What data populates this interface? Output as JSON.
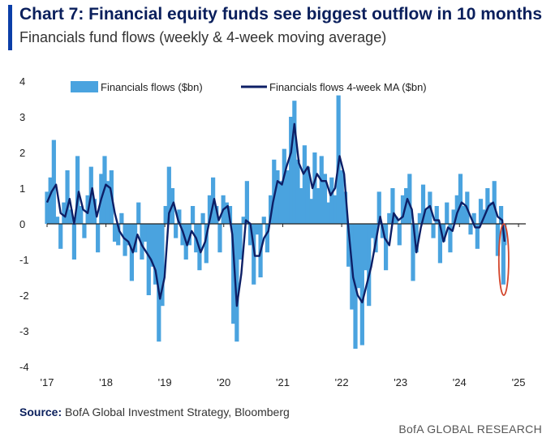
{
  "header": {
    "title": "Chart 7: Financial equity funds see biggest outflow in 10 months",
    "subtitle": "Financials fund flows (weekly & 4-week moving average)"
  },
  "footer": {
    "source_label": "Source:",
    "source_text": "BofA Global Investment Strategy, Bloomberg",
    "brand": "BofA GLOBAL RESEARCH"
  },
  "colors": {
    "weekly": "#4aa3df",
    "ma": "#0d1f66",
    "highlight": "#d2452b",
    "axis": "#222222",
    "accent": "#0b3ea8"
  },
  "chart_data": {
    "type": "bar",
    "x_type": "date",
    "x_range": [
      "2017-01-01",
      "2025-02-15"
    ],
    "ylim": [
      -4,
      4
    ],
    "y_ticks": [
      4,
      3,
      2,
      1,
      0,
      -1,
      -2,
      -3,
      -4
    ],
    "x_tick_labels": [
      "'17",
      "'18",
      "'19",
      "'20",
      "'21",
      "'22",
      "'23",
      "'24",
      "'25"
    ],
    "x_tick_dates": [
      "2017-01-01",
      "2018-01-01",
      "2019-01-01",
      "2020-01-01",
      "2021-01-01",
      "2022-01-01",
      "2023-01-01",
      "2024-01-01",
      "2025-01-01"
    ],
    "legend_position": "top",
    "annotation": {
      "type": "ellipse-highlight",
      "x_range": [
        "2024-09-01",
        "2024-11-01"
      ],
      "y_range": [
        -2.0,
        0.0
      ]
    },
    "series": [
      {
        "name": "Financials flows ($bn)",
        "type": "bar",
        "points": [
          [
            "2017-01-01",
            0.9
          ],
          [
            "2017-01-22",
            1.3
          ],
          [
            "2017-02-12",
            2.35
          ],
          [
            "2017-03-05",
            0.2
          ],
          [
            "2017-03-26",
            -0.7
          ],
          [
            "2017-04-16",
            0.6
          ],
          [
            "2017-05-07",
            1.5
          ],
          [
            "2017-05-28",
            0.4
          ],
          [
            "2017-06-18",
            -1.0
          ],
          [
            "2017-07-09",
            1.9
          ],
          [
            "2017-07-30",
            0.5
          ],
          [
            "2017-08-20",
            -0.4
          ],
          [
            "2017-09-10",
            0.8
          ],
          [
            "2017-10-01",
            1.6
          ],
          [
            "2017-10-22",
            0.7
          ],
          [
            "2017-11-12",
            -0.8
          ],
          [
            "2017-12-03",
            1.4
          ],
          [
            "2017-12-24",
            1.9
          ],
          [
            "2018-01-14",
            1.2
          ],
          [
            "2018-02-04",
            1.5
          ],
          [
            "2018-02-25",
            -0.5
          ],
          [
            "2018-03-18",
            -0.6
          ],
          [
            "2018-04-08",
            0.3
          ],
          [
            "2018-04-29",
            -0.9
          ],
          [
            "2018-05-20",
            -0.6
          ],
          [
            "2018-06-10",
            -1.6
          ],
          [
            "2018-07-01",
            -0.8
          ],
          [
            "2018-07-22",
            0.6
          ],
          [
            "2018-08-12",
            -1.0
          ],
          [
            "2018-09-02",
            -0.5
          ],
          [
            "2018-09-23",
            -2.0
          ],
          [
            "2018-10-14",
            -1.2
          ],
          [
            "2018-11-04",
            -1.7
          ],
          [
            "2018-11-25",
            -3.3
          ],
          [
            "2018-12-16",
            -2.3
          ],
          [
            "2019-01-06",
            0.5
          ],
          [
            "2019-01-27",
            1.6
          ],
          [
            "2019-02-17",
            1.0
          ],
          [
            "2019-03-10",
            -0.4
          ],
          [
            "2019-03-31",
            0.4
          ],
          [
            "2019-04-21",
            -0.6
          ],
          [
            "2019-05-12",
            -1.0
          ],
          [
            "2019-06-02",
            -0.6
          ],
          [
            "2019-06-23",
            0.5
          ],
          [
            "2019-07-14",
            -0.8
          ],
          [
            "2019-08-04",
            -1.3
          ],
          [
            "2019-08-25",
            0.3
          ],
          [
            "2019-09-15",
            -1.1
          ],
          [
            "2019-10-06",
            0.8
          ],
          [
            "2019-10-27",
            1.3
          ],
          [
            "2019-11-17",
            0.5
          ],
          [
            "2019-12-08",
            -0.8
          ],
          [
            "2019-12-29",
            0.8
          ],
          [
            "2020-01-19",
            0.6
          ],
          [
            "2020-02-09",
            0.5
          ],
          [
            "2020-03-01",
            -2.8
          ],
          [
            "2020-03-22",
            -3.3
          ],
          [
            "2020-04-12",
            -1.0
          ],
          [
            "2020-05-03",
            0.2
          ],
          [
            "2020-05-24",
            1.2
          ],
          [
            "2020-06-14",
            -0.6
          ],
          [
            "2020-07-05",
            -1.7
          ],
          [
            "2020-07-26",
            -0.3
          ],
          [
            "2020-08-16",
            -1.5
          ],
          [
            "2020-09-06",
            0.2
          ],
          [
            "2020-09-27",
            -0.8
          ],
          [
            "2020-10-18",
            0.8
          ],
          [
            "2020-11-08",
            1.8
          ],
          [
            "2020-11-29",
            1.5
          ],
          [
            "2020-12-20",
            1.2
          ],
          [
            "2021-01-10",
            2.1
          ],
          [
            "2021-01-31",
            1.5
          ],
          [
            "2021-02-21",
            3.0
          ],
          [
            "2021-03-14",
            3.45
          ],
          [
            "2021-04-04",
            1.8
          ],
          [
            "2021-04-25",
            1.0
          ],
          [
            "2021-05-16",
            2.2
          ],
          [
            "2021-06-06",
            1.6
          ],
          [
            "2021-06-27",
            0.7
          ],
          [
            "2021-07-18",
            2.0
          ],
          [
            "2021-08-08",
            1.0
          ],
          [
            "2021-08-29",
            1.9
          ],
          [
            "2021-09-19",
            1.4
          ],
          [
            "2021-10-10",
            0.6
          ],
          [
            "2021-10-31",
            1.3
          ],
          [
            "2021-11-21",
            0.8
          ],
          [
            "2021-12-12",
            3.6
          ],
          [
            "2022-01-02",
            1.5
          ],
          [
            "2022-01-23",
            0.9
          ],
          [
            "2022-02-13",
            -1.2
          ],
          [
            "2022-03-06",
            -2.4
          ],
          [
            "2022-03-27",
            -3.5
          ],
          [
            "2022-04-17",
            -1.8
          ],
          [
            "2022-05-08",
            -3.4
          ],
          [
            "2022-05-29",
            -1.3
          ],
          [
            "2022-06-19",
            -2.3
          ],
          [
            "2022-07-10",
            -0.4
          ],
          [
            "2022-07-31",
            -0.8
          ],
          [
            "2022-08-21",
            0.9
          ],
          [
            "2022-09-11",
            -0.4
          ],
          [
            "2022-10-02",
            -1.3
          ],
          [
            "2022-10-23",
            0.3
          ],
          [
            "2022-11-13",
            1.0
          ],
          [
            "2022-12-04",
            0.2
          ],
          [
            "2022-12-25",
            -0.6
          ],
          [
            "2023-01-15",
            0.8
          ],
          [
            "2023-02-05",
            1.0
          ],
          [
            "2023-02-26",
            1.4
          ],
          [
            "2023-03-19",
            -1.6
          ],
          [
            "2023-04-09",
            -0.8
          ],
          [
            "2023-04-30",
            0.3
          ],
          [
            "2023-05-21",
            1.1
          ],
          [
            "2023-06-11",
            0.4
          ],
          [
            "2023-07-02",
            0.9
          ],
          [
            "2023-07-23",
            -0.4
          ],
          [
            "2023-08-13",
            0.5
          ],
          [
            "2023-09-03",
            -1.1
          ],
          [
            "2023-09-24",
            -0.5
          ],
          [
            "2023-10-15",
            0.6
          ],
          [
            "2023-11-05",
            -0.8
          ],
          [
            "2023-11-26",
            0.4
          ],
          [
            "2023-12-17",
            0.8
          ],
          [
            "2024-01-07",
            1.4
          ],
          [
            "2024-01-28",
            0.5
          ],
          [
            "2024-02-18",
            0.9
          ],
          [
            "2024-03-10",
            -0.3
          ],
          [
            "2024-03-31",
            0.3
          ],
          [
            "2024-04-21",
            -0.7
          ],
          [
            "2024-05-12",
            0.7
          ],
          [
            "2024-06-02",
            0.4
          ],
          [
            "2024-06-23",
            1.0
          ],
          [
            "2024-07-14",
            0.6
          ],
          [
            "2024-08-04",
            1.2
          ],
          [
            "2024-08-25",
            -0.9
          ],
          [
            "2024-09-15",
            0.5
          ],
          [
            "2024-09-29",
            -1.7
          ],
          [
            "2024-10-06",
            -0.6
          ]
        ]
      },
      {
        "name": "Financials flows 4-week MA ($bn)",
        "type": "line",
        "points": [
          [
            "2017-01-01",
            0.6
          ],
          [
            "2017-01-29",
            0.9
          ],
          [
            "2017-02-26",
            1.1
          ],
          [
            "2017-03-26",
            0.3
          ],
          [
            "2017-04-23",
            0.2
          ],
          [
            "2017-05-21",
            0.7
          ],
          [
            "2017-06-18",
            0.0
          ],
          [
            "2017-07-16",
            0.9
          ],
          [
            "2017-08-13",
            0.4
          ],
          [
            "2017-09-10",
            0.3
          ],
          [
            "2017-10-08",
            1.0
          ],
          [
            "2017-11-05",
            0.2
          ],
          [
            "2017-12-03",
            0.7
          ],
          [
            "2017-12-31",
            1.1
          ],
          [
            "2018-01-28",
            1.0
          ],
          [
            "2018-02-25",
            0.3
          ],
          [
            "2018-03-25",
            -0.2
          ],
          [
            "2018-04-22",
            -0.4
          ],
          [
            "2018-05-20",
            -0.5
          ],
          [
            "2018-06-17",
            -0.8
          ],
          [
            "2018-07-15",
            -0.3
          ],
          [
            "2018-08-12",
            -0.6
          ],
          [
            "2018-09-09",
            -0.8
          ],
          [
            "2018-10-07",
            -1.0
          ],
          [
            "2018-11-04",
            -1.3
          ],
          [
            "2018-12-02",
            -2.1
          ],
          [
            "2018-12-30",
            -1.5
          ],
          [
            "2019-01-27",
            0.3
          ],
          [
            "2019-02-24",
            0.6
          ],
          [
            "2019-03-24",
            0.1
          ],
          [
            "2019-04-21",
            -0.2
          ],
          [
            "2019-05-19",
            -0.6
          ],
          [
            "2019-06-16",
            -0.2
          ],
          [
            "2019-07-14",
            -0.4
          ],
          [
            "2019-08-11",
            -0.8
          ],
          [
            "2019-09-08",
            -0.5
          ],
          [
            "2019-10-06",
            0.1
          ],
          [
            "2019-11-03",
            0.7
          ],
          [
            "2019-12-01",
            0.1
          ],
          [
            "2019-12-29",
            0.4
          ],
          [
            "2020-01-26",
            0.5
          ],
          [
            "2020-02-23",
            -0.3
          ],
          [
            "2020-03-22",
            -2.3
          ],
          [
            "2020-04-19",
            -1.4
          ],
          [
            "2020-05-17",
            0.1
          ],
          [
            "2020-06-14",
            0.0
          ],
          [
            "2020-07-12",
            -0.9
          ],
          [
            "2020-08-09",
            -0.9
          ],
          [
            "2020-09-06",
            -0.4
          ],
          [
            "2020-10-04",
            -0.2
          ],
          [
            "2020-11-01",
            0.6
          ],
          [
            "2020-11-29",
            1.2
          ],
          [
            "2020-12-27",
            1.1
          ],
          [
            "2021-01-24",
            1.6
          ],
          [
            "2021-02-21",
            2.0
          ],
          [
            "2021-03-14",
            2.8
          ],
          [
            "2021-04-11",
            1.7
          ],
          [
            "2021-05-09",
            1.4
          ],
          [
            "2021-06-06",
            1.6
          ],
          [
            "2021-07-04",
            1.0
          ],
          [
            "2021-08-01",
            1.4
          ],
          [
            "2021-08-29",
            1.2
          ],
          [
            "2021-09-26",
            1.2
          ],
          [
            "2021-10-24",
            0.8
          ],
          [
            "2021-11-21",
            1.0
          ],
          [
            "2021-12-19",
            1.9
          ],
          [
            "2022-01-16",
            1.4
          ],
          [
            "2022-02-13",
            -0.2
          ],
          [
            "2022-03-13",
            -1.5
          ],
          [
            "2022-04-10",
            -2.0
          ],
          [
            "2022-05-08",
            -2.2
          ],
          [
            "2022-06-05",
            -1.7
          ],
          [
            "2022-07-03",
            -1.2
          ],
          [
            "2022-07-31",
            -0.5
          ],
          [
            "2022-08-28",
            0.2
          ],
          [
            "2022-09-25",
            -0.4
          ],
          [
            "2022-10-23",
            -0.6
          ],
          [
            "2022-11-20",
            0.3
          ],
          [
            "2022-12-18",
            0.1
          ],
          [
            "2023-01-15",
            0.2
          ],
          [
            "2023-02-12",
            0.7
          ],
          [
            "2023-03-12",
            0.4
          ],
          [
            "2023-04-09",
            -0.8
          ],
          [
            "2023-05-07",
            -0.1
          ],
          [
            "2023-06-04",
            0.4
          ],
          [
            "2023-07-02",
            0.5
          ],
          [
            "2023-07-30",
            0.1
          ],
          [
            "2023-08-27",
            0.1
          ],
          [
            "2023-09-24",
            -0.5
          ],
          [
            "2023-10-22",
            -0.1
          ],
          [
            "2023-11-19",
            -0.2
          ],
          [
            "2023-12-17",
            0.3
          ],
          [
            "2024-01-14",
            0.6
          ],
          [
            "2024-02-11",
            0.5
          ],
          [
            "2024-03-10",
            0.2
          ],
          [
            "2024-04-07",
            -0.1
          ],
          [
            "2024-05-05",
            -0.1
          ],
          [
            "2024-06-02",
            0.2
          ],
          [
            "2024-06-30",
            0.5
          ],
          [
            "2024-07-28",
            0.6
          ],
          [
            "2024-08-25",
            0.2
          ],
          [
            "2024-09-22",
            0.1
          ],
          [
            "2024-10-06",
            -0.5
          ]
        ]
      }
    ]
  }
}
